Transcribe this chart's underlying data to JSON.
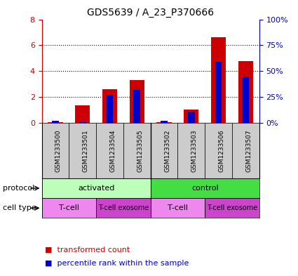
{
  "title": "GDS5639 / A_23_P370666",
  "samples": [
    "GSM1233500",
    "GSM1233501",
    "GSM1233504",
    "GSM1233505",
    "GSM1233502",
    "GSM1233503",
    "GSM1233506",
    "GSM1233507"
  ],
  "transformed_count": [
    0.05,
    1.35,
    2.6,
    3.3,
    0.05,
    1.05,
    6.6,
    4.8
  ],
  "percentile_rank_pct": [
    2.0,
    1.0,
    27.0,
    32.0,
    2.0,
    11.0,
    59.0,
    45.0
  ],
  "ylim_left": [
    0,
    8
  ],
  "ylim_right": [
    0,
    100
  ],
  "yticks_left": [
    0,
    2,
    4,
    6,
    8
  ],
  "yticks_right": [
    0,
    25,
    50,
    75,
    100
  ],
  "ytick_labels_right": [
    "0%",
    "25%",
    "50%",
    "75%",
    "100%"
  ],
  "bar_color_red": "#cc0000",
  "bar_color_blue": "#0000cc",
  "protocol_groups": [
    {
      "label": "activated",
      "start": 0,
      "end": 4,
      "color": "#bbffbb"
    },
    {
      "label": "control",
      "start": 4,
      "end": 8,
      "color": "#44dd44"
    }
  ],
  "cell_type_groups": [
    {
      "label": "T-cell",
      "start": 0,
      "end": 2,
      "color": "#ee88ee"
    },
    {
      "label": "T-cell exosome",
      "start": 2,
      "end": 4,
      "color": "#cc44cc"
    },
    {
      "label": "T-cell",
      "start": 4,
      "end": 6,
      "color": "#ee88ee"
    },
    {
      "label": "T-cell exosome",
      "start": 6,
      "end": 8,
      "color": "#cc44cc"
    }
  ],
  "tick_bg_color": "#cccccc",
  "label_color_left": "#cc0000",
  "label_color_right": "#0000cc",
  "fig_width": 4.25,
  "fig_height": 3.93,
  "dpi": 100
}
